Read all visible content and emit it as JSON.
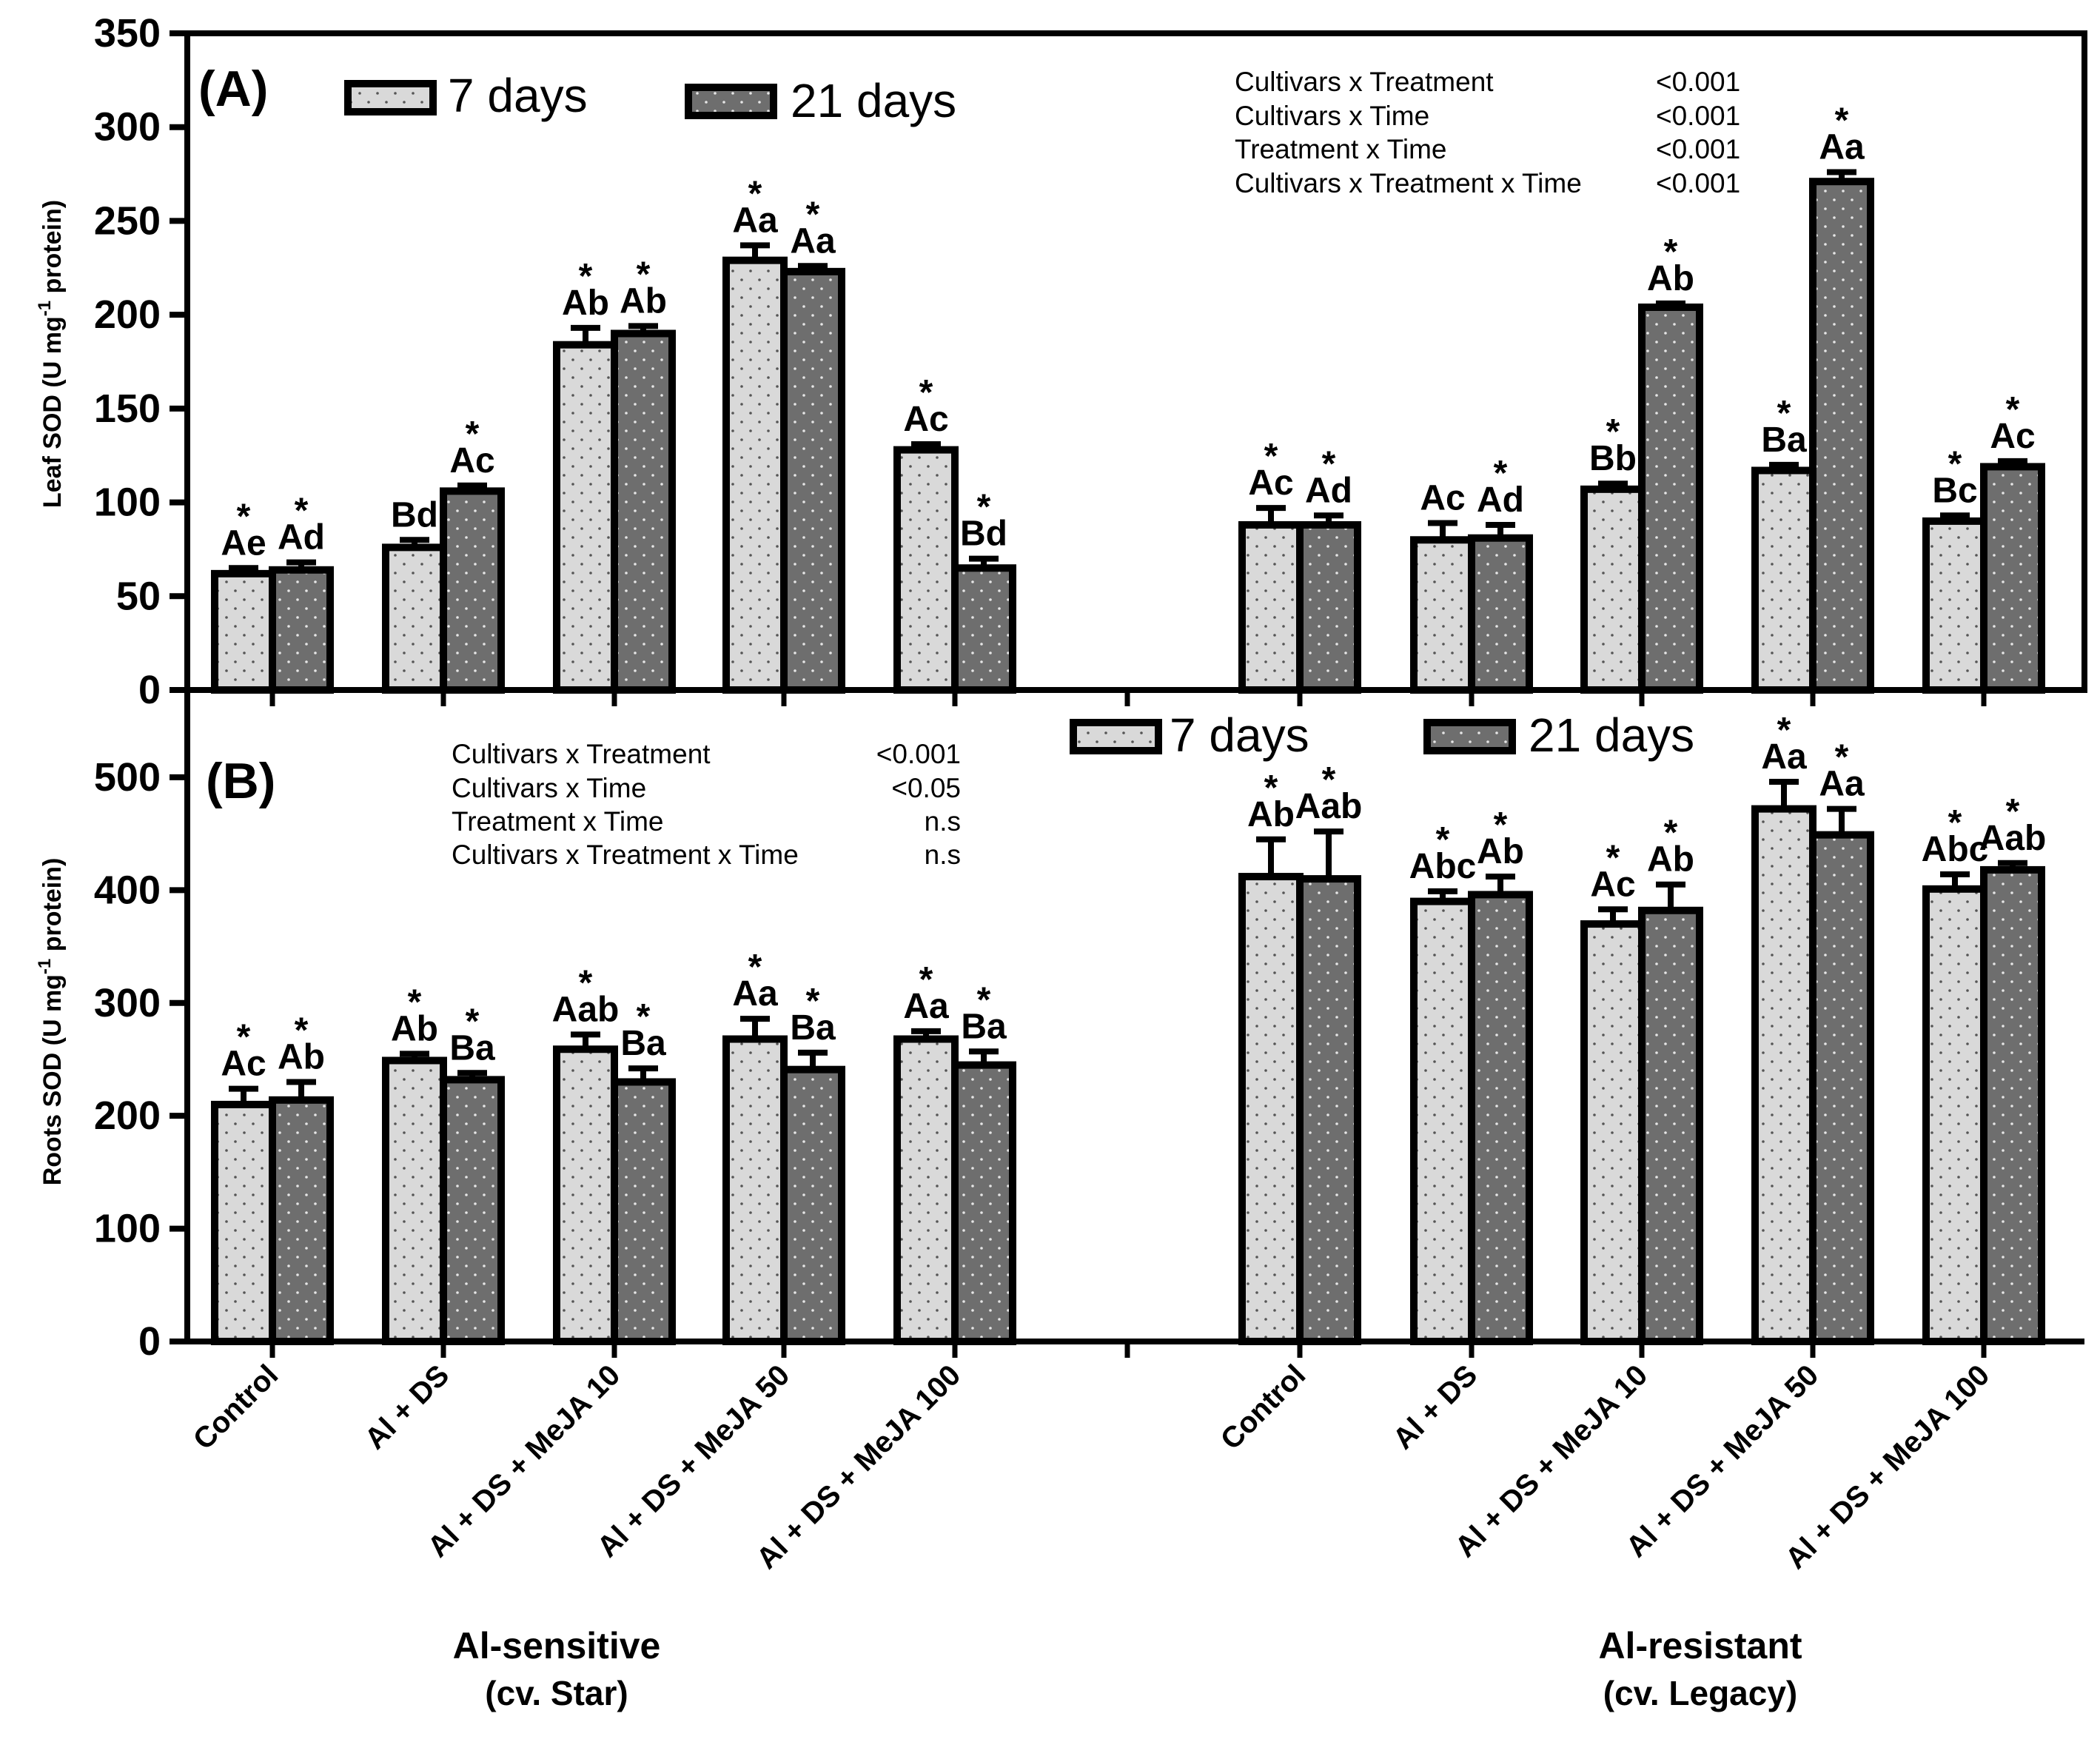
{
  "chart_data": [
    {
      "id": "A",
      "type": "bar",
      "panel_label": "(A)",
      "ylabel": "Leaf SOD (U mg",
      "ylabel_sup": "-1",
      "ylabel_tail": " protein)",
      "ylim": [
        0,
        350
      ],
      "yticks": [
        0,
        50,
        100,
        150,
        200,
        250,
        300,
        350
      ],
      "legend": {
        "placement": "top-left",
        "labels": [
          "7 days",
          "21 days"
        ]
      },
      "stats": [
        {
          "term": "Cultivars x Treatment",
          "p": "<0.001"
        },
        {
          "term": "Cultivars x Time",
          "p": "<0.001"
        },
        {
          "term": "Treatment x Time",
          "p": "<0.001"
        },
        {
          "term": "Cultivars x Treatment x Time",
          "p": "<0.001"
        }
      ],
      "series": [
        {
          "name": "7 days",
          "values": [
            62,
            76,
            184,
            229,
            128,
            88,
            80,
            107,
            117,
            90
          ],
          "errors": [
            3,
            4,
            9,
            8,
            3,
            9,
            9,
            3,
            3,
            3
          ],
          "letters": [
            "Ae",
            "Bd",
            "Ab",
            "Aa",
            "Ac",
            "Ac",
            "Ac",
            "Bb",
            "Ba",
            "Bc"
          ],
          "stars": [
            "*",
            "",
            "*",
            "*",
            "*",
            "*",
            "",
            "*",
            "*",
            "*"
          ]
        },
        {
          "name": "21 days",
          "values": [
            64,
            106,
            190,
            223,
            65,
            88,
            81,
            204,
            271,
            119
          ],
          "errors": [
            4,
            3,
            4,
            3,
            5,
            5,
            7,
            2,
            5,
            3
          ],
          "letters": [
            "Ad",
            "Ac",
            "Ab",
            "Aa",
            "Bd",
            "Ad",
            "Ad",
            "Ab",
            "Aa",
            "Ac"
          ],
          "stars": [
            "*",
            "*",
            "*",
            "*",
            "*",
            "*",
            "*",
            "*",
            "*",
            "*"
          ]
        }
      ]
    },
    {
      "id": "B",
      "type": "bar",
      "panel_label": "(B)",
      "ylabel": "Roots SOD (U mg",
      "ylabel_sup": "-1",
      "ylabel_tail": " protein)",
      "ylim": [
        0,
        580
      ],
      "yticks": [
        0,
        100,
        200,
        300,
        400,
        500
      ],
      "legend": {
        "placement": "top-right",
        "labels": [
          "7 days",
          "21 days"
        ]
      },
      "stats": [
        {
          "term": "Cultivars x Treatment",
          "p": "<0.001"
        },
        {
          "term": "Cultivars x Time",
          "p": "<0.05"
        },
        {
          "term": "Treatment x Time",
          "p": "n.s"
        },
        {
          "term": "Cultivars x Treatment x Time",
          "p": "n.s"
        }
      ],
      "series": [
        {
          "name": "7 days",
          "values": [
            210,
            249,
            259,
            268,
            268,
            412,
            390,
            370,
            472,
            401
          ],
          "errors": [
            14,
            6,
            13,
            18,
            7,
            33,
            9,
            13,
            24,
            13
          ],
          "letters": [
            "Ac",
            "Ab",
            "Aab",
            "Aa",
            "Aa",
            "Ab",
            "Abc",
            "Ac",
            "Aa",
            "Abc"
          ],
          "stars": [
            "*",
            "*",
            "*",
            "*",
            "*",
            "*",
            "*",
            "*",
            "*",
            "*"
          ]
        },
        {
          "name": "21 days",
          "values": [
            214,
            232,
            230,
            241,
            245,
            410,
            396,
            382,
            449,
            418
          ],
          "errors": [
            16,
            6,
            12,
            15,
            12,
            42,
            16,
            23,
            23,
            6
          ],
          "letters": [
            "Ab",
            "Ba",
            "Ba",
            "Ba",
            "Ba",
            "Aab",
            "Ab",
            "Ab",
            "Aa",
            "Aab"
          ],
          "stars": [
            "*",
            "*",
            "*",
            "*",
            "*",
            "*",
            "*",
            "*",
            "*",
            "*"
          ]
        }
      ]
    }
  ],
  "categories": [
    "Control",
    "Al + DS",
    "Al + DS + MeJA 10",
    "Al + DS + MeJA 50",
    "Al + DS + MeJA 100",
    "Control",
    "Al + DS",
    "Al + DS + MeJA 10",
    "Al + DS + MeJA 50",
    "Al + DS + MeJA 100"
  ],
  "groups": [
    {
      "label": "Al-sensitive",
      "sub": "(cv. Star)"
    },
    {
      "label": "Al-resistant",
      "sub": "(cv. Legacy)"
    }
  ],
  "colors": {
    "series7": "#d9d9d9",
    "series21": "#6e6e6e",
    "dots7": "#555555",
    "dots21": "#e6e6e6",
    "axis": "#000000"
  }
}
